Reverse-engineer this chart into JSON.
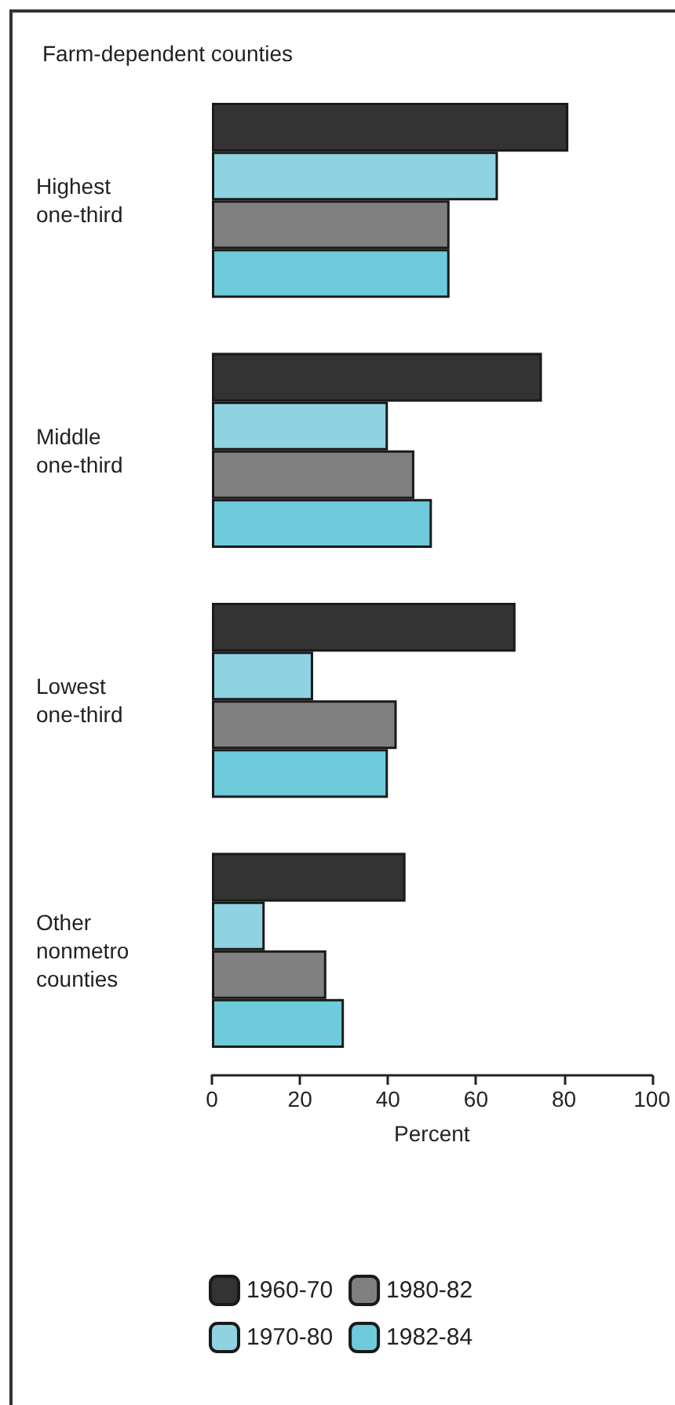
{
  "chart_data": {
    "type": "bar",
    "orientation": "horizontal",
    "title": "Farm-dependent counties",
    "xlabel": "Percent",
    "categories": [
      "Highest\none-third",
      "Middle\none-third",
      "Lowest\none-third",
      "Other\nnonmetro\ncounties"
    ],
    "series": [
      {
        "name": "1960-70",
        "color": "#333333",
        "values": [
          81,
          75,
          69,
          44
        ]
      },
      {
        "name": "1970-80",
        "color": "#8fd3e3",
        "values": [
          65,
          40,
          23,
          12
        ]
      },
      {
        "name": "1980-82",
        "color": "#808080",
        "values": [
          54,
          46,
          42,
          26
        ]
      },
      {
        "name": "1982-84",
        "color": "#6ccadb",
        "values": [
          54,
          50,
          40,
          30
        ]
      }
    ],
    "xlim": [
      0,
      100
    ],
    "xticks": [
      0,
      20,
      40,
      60,
      80,
      100
    ],
    "grid": false,
    "legend": "bottom"
  }
}
